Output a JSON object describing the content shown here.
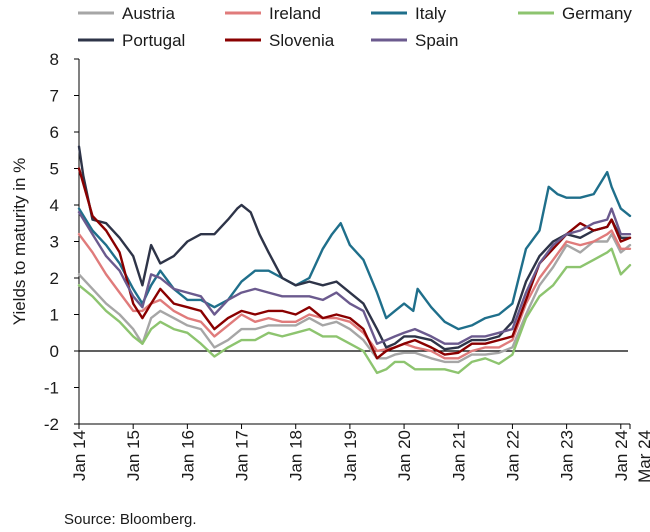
{
  "chart_data": {
    "type": "line",
    "ylabel": "Yields to maturity in %",
    "source": "Source: Bloomberg.",
    "ylim": [
      -2,
      8
    ],
    "yticks": [
      -2,
      -1,
      0,
      1,
      2,
      3,
      4,
      5,
      6,
      7,
      8
    ],
    "x_tick_labels": [
      "Jan 14",
      "Jan 15",
      "Jan 16",
      "Jan 17",
      "Jan 18",
      "Jan 19",
      "Jan 20",
      "Jan 21",
      "Jan 22",
      "Jan 23",
      "Jan 24",
      "Mar 24"
    ],
    "x_tick_dates": [
      2014.0,
      2015.0,
      2016.0,
      2017.0,
      2018.0,
      2019.0,
      2020.0,
      2021.0,
      2022.0,
      2023.0,
      2024.0,
      2024.17
    ],
    "xlim": [
      2014.0,
      2024.17
    ],
    "grid": false,
    "legend_position": "top",
    "series": [
      {
        "name": "Austria",
        "color": "#a6a6a6",
        "x": [
          2014.0,
          2014.25,
          2014.5,
          2014.75,
          2015.0,
          2015.17,
          2015.33,
          2015.5,
          2015.75,
          2016.0,
          2016.25,
          2016.5,
          2016.75,
          2017.0,
          2017.25,
          2017.5,
          2017.75,
          2018.0,
          2018.25,
          2018.5,
          2018.75,
          2019.0,
          2019.25,
          2019.5,
          2019.67,
          2019.83,
          2020.0,
          2020.2,
          2020.5,
          2020.75,
          2021.0,
          2021.25,
          2021.5,
          2021.75,
          2022.0,
          2022.25,
          2022.5,
          2022.75,
          2023.0,
          2023.25,
          2023.5,
          2023.75,
          2023.83,
          2024.0,
          2024.17
        ],
        "values": [
          2.1,
          1.7,
          1.3,
          1.0,
          0.6,
          0.2,
          0.9,
          1.1,
          0.9,
          0.7,
          0.6,
          0.1,
          0.3,
          0.6,
          0.6,
          0.7,
          0.7,
          0.7,
          0.9,
          0.7,
          0.8,
          0.6,
          0.3,
          -0.2,
          -0.2,
          -0.1,
          -0.05,
          -0.05,
          -0.2,
          -0.3,
          -0.3,
          -0.1,
          -0.1,
          -0.05,
          0.1,
          1.0,
          1.8,
          2.3,
          2.9,
          2.7,
          3.0,
          3.0,
          3.2,
          2.7,
          2.9
        ]
      },
      {
        "name": "Ireland",
        "color": "#e07b7b",
        "x": [
          2014.0,
          2014.25,
          2014.5,
          2014.75,
          2015.0,
          2015.17,
          2015.33,
          2015.5,
          2015.75,
          2016.0,
          2016.25,
          2016.5,
          2016.75,
          2017.0,
          2017.25,
          2017.5,
          2017.75,
          2018.0,
          2018.25,
          2018.5,
          2018.75,
          2019.0,
          2019.25,
          2019.5,
          2019.67,
          2019.83,
          2020.0,
          2020.2,
          2020.5,
          2020.75,
          2021.0,
          2021.25,
          2021.5,
          2021.75,
          2022.0,
          2022.25,
          2022.5,
          2022.75,
          2023.0,
          2023.25,
          2023.5,
          2023.75,
          2023.83,
          2024.0,
          2024.17
        ],
        "values": [
          3.2,
          2.7,
          2.1,
          1.6,
          1.1,
          1.1,
          1.3,
          1.4,
          1.1,
          0.9,
          0.8,
          0.4,
          0.7,
          1.0,
          0.8,
          0.9,
          0.8,
          0.8,
          1.0,
          0.9,
          0.9,
          0.8,
          0.5,
          0.0,
          0.05,
          0.1,
          0.2,
          0.1,
          0.0,
          -0.2,
          -0.2,
          0.0,
          0.1,
          0.1,
          0.3,
          1.3,
          2.0,
          2.5,
          3.0,
          2.9,
          3.0,
          3.2,
          3.3,
          2.8,
          2.8
        ]
      },
      {
        "name": "Italy",
        "color": "#1f6f8b",
        "x": [
          2014.0,
          2014.25,
          2014.5,
          2014.75,
          2015.0,
          2015.17,
          2015.33,
          2015.5,
          2015.75,
          2016.0,
          2016.25,
          2016.5,
          2016.75,
          2017.0,
          2017.25,
          2017.5,
          2017.75,
          2018.0,
          2018.25,
          2018.5,
          2018.67,
          2018.83,
          2019.0,
          2019.25,
          2019.5,
          2019.67,
          2019.83,
          2020.0,
          2020.17,
          2020.25,
          2020.5,
          2020.75,
          2021.0,
          2021.25,
          2021.5,
          2021.75,
          2022.0,
          2022.25,
          2022.5,
          2022.67,
          2022.83,
          2023.0,
          2023.25,
          2023.5,
          2023.75,
          2023.83,
          2024.0,
          2024.17
        ],
        "values": [
          3.9,
          3.3,
          2.9,
          2.4,
          1.7,
          1.3,
          1.8,
          2.2,
          1.7,
          1.4,
          1.4,
          1.2,
          1.4,
          1.9,
          2.2,
          2.2,
          2.0,
          1.8,
          2.0,
          2.8,
          3.2,
          3.5,
          2.9,
          2.5,
          1.6,
          0.9,
          1.1,
          1.3,
          1.1,
          1.7,
          1.2,
          0.8,
          0.6,
          0.7,
          0.9,
          1.0,
          1.3,
          2.8,
          3.3,
          4.5,
          4.3,
          4.2,
          4.2,
          4.3,
          4.9,
          4.5,
          3.9,
          3.7
        ]
      },
      {
        "name": "Germany",
        "color": "#8dc46f",
        "x": [
          2014.0,
          2014.25,
          2014.5,
          2014.75,
          2015.0,
          2015.17,
          2015.33,
          2015.5,
          2015.75,
          2016.0,
          2016.25,
          2016.5,
          2016.75,
          2017.0,
          2017.25,
          2017.5,
          2017.75,
          2018.0,
          2018.25,
          2018.5,
          2018.75,
          2019.0,
          2019.25,
          2019.5,
          2019.67,
          2019.83,
          2020.0,
          2020.2,
          2020.5,
          2020.75,
          2021.0,
          2021.25,
          2021.5,
          2021.75,
          2022.0,
          2022.25,
          2022.5,
          2022.75,
          2023.0,
          2023.25,
          2023.5,
          2023.75,
          2023.83,
          2024.0,
          2024.17
        ],
        "values": [
          1.8,
          1.5,
          1.1,
          0.8,
          0.4,
          0.2,
          0.6,
          0.8,
          0.6,
          0.5,
          0.2,
          -0.15,
          0.1,
          0.3,
          0.3,
          0.5,
          0.4,
          0.5,
          0.6,
          0.4,
          0.4,
          0.2,
          0.0,
          -0.6,
          -0.5,
          -0.3,
          -0.3,
          -0.5,
          -0.5,
          -0.5,
          -0.6,
          -0.3,
          -0.2,
          -0.35,
          -0.1,
          0.9,
          1.5,
          1.8,
          2.3,
          2.3,
          2.5,
          2.7,
          2.8,
          2.1,
          2.35
        ]
      },
      {
        "name": "Portugal",
        "color": "#2e3448",
        "x": [
          2014.0,
          2014.08,
          2014.25,
          2014.5,
          2014.75,
          2015.0,
          2015.17,
          2015.33,
          2015.5,
          2015.75,
          2016.0,
          2016.25,
          2016.5,
          2016.75,
          2016.92,
          2017.0,
          2017.17,
          2017.33,
          2017.5,
          2017.75,
          2018.0,
          2018.25,
          2018.5,
          2018.75,
          2019.0,
          2019.25,
          2019.5,
          2019.67,
          2019.83,
          2020.0,
          2020.2,
          2020.5,
          2020.75,
          2021.0,
          2021.25,
          2021.5,
          2021.75,
          2022.0,
          2022.25,
          2022.5,
          2022.75,
          2023.0,
          2023.25,
          2023.5,
          2023.75,
          2023.83,
          2024.0,
          2024.17
        ],
        "values": [
          5.6,
          4.8,
          3.6,
          3.5,
          3.1,
          2.6,
          1.8,
          2.9,
          2.4,
          2.6,
          3.0,
          3.2,
          3.2,
          3.6,
          3.9,
          4.0,
          3.8,
          3.2,
          2.7,
          2.0,
          1.8,
          1.9,
          1.8,
          1.9,
          1.6,
          1.3,
          0.6,
          0.1,
          0.2,
          0.4,
          0.4,
          0.3,
          0.05,
          0.1,
          0.3,
          0.3,
          0.4,
          0.8,
          1.9,
          2.6,
          3.0,
          3.2,
          3.1,
          3.3,
          3.4,
          3.6,
          3.1,
          3.1
        ]
      },
      {
        "name": "Slovenia",
        "color": "#8a0000",
        "x": [
          2014.0,
          2014.25,
          2014.5,
          2014.75,
          2015.0,
          2015.17,
          2015.33,
          2015.5,
          2015.75,
          2016.0,
          2016.25,
          2016.5,
          2016.75,
          2017.0,
          2017.25,
          2017.5,
          2017.75,
          2018.0,
          2018.25,
          2018.5,
          2018.75,
          2019.0,
          2019.25,
          2019.5,
          2019.67,
          2019.83,
          2020.0,
          2020.2,
          2020.5,
          2020.75,
          2021.0,
          2021.25,
          2021.5,
          2021.75,
          2022.0,
          2022.25,
          2022.5,
          2022.75,
          2023.0,
          2023.25,
          2023.5,
          2023.75,
          2023.83,
          2024.0,
          2024.17
        ],
        "values": [
          5.0,
          3.7,
          3.3,
          2.7,
          1.3,
          0.9,
          1.3,
          1.7,
          1.3,
          1.2,
          1.1,
          0.6,
          0.9,
          1.1,
          1.0,
          1.1,
          1.1,
          1.0,
          1.2,
          0.9,
          1.0,
          0.9,
          0.6,
          -0.2,
          0.0,
          0.1,
          0.2,
          0.3,
          0.1,
          -0.1,
          -0.05,
          0.2,
          0.2,
          0.3,
          0.4,
          1.4,
          2.4,
          2.8,
          3.2,
          3.5,
          3.3,
          3.4,
          3.6,
          3.0,
          3.1
        ]
      },
      {
        "name": "Spain",
        "color": "#6b5a8e",
        "x": [
          2014.0,
          2014.25,
          2014.5,
          2014.75,
          2015.0,
          2015.17,
          2015.33,
          2015.5,
          2015.75,
          2016.0,
          2016.25,
          2016.5,
          2016.75,
          2017.0,
          2017.25,
          2017.5,
          2017.75,
          2018.0,
          2018.25,
          2018.5,
          2018.75,
          2019.0,
          2019.25,
          2019.5,
          2019.67,
          2019.83,
          2020.0,
          2020.2,
          2020.5,
          2020.75,
          2021.0,
          2021.25,
          2021.5,
          2021.75,
          2022.0,
          2022.25,
          2022.5,
          2022.75,
          2023.0,
          2023.25,
          2023.5,
          2023.75,
          2023.83,
          2024.0,
          2024.17
        ],
        "values": [
          3.8,
          3.2,
          2.6,
          2.2,
          1.5,
          1.2,
          2.1,
          2.0,
          1.7,
          1.6,
          1.5,
          1.0,
          1.4,
          1.6,
          1.7,
          1.6,
          1.5,
          1.5,
          1.5,
          1.4,
          1.6,
          1.3,
          1.1,
          0.2,
          0.3,
          0.4,
          0.5,
          0.6,
          0.4,
          0.2,
          0.2,
          0.4,
          0.4,
          0.5,
          0.6,
          1.6,
          2.4,
          2.9,
          3.2,
          3.3,
          3.5,
          3.6,
          3.9,
          3.2,
          3.2
        ]
      }
    ]
  }
}
